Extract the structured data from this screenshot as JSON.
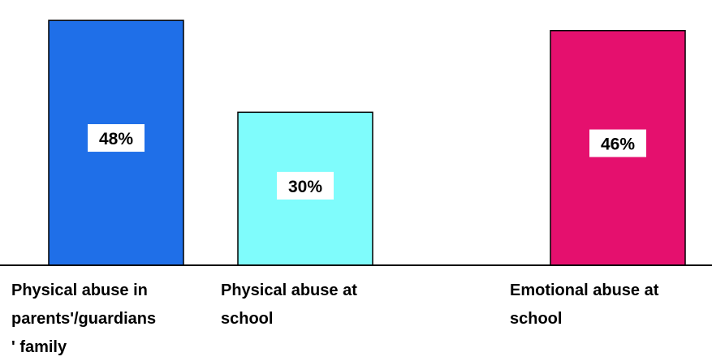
{
  "chart_data": {
    "type": "bar",
    "categories": [
      [
        "Physical abuse in",
        "parents'/guardians",
        "' family"
      ],
      [
        "Physical abuse at",
        "school"
      ],
      [
        "Emotional abuse at",
        "school"
      ]
    ],
    "values": [
      48,
      30,
      46
    ],
    "data_labels": [
      "48%",
      "30%",
      "46%"
    ],
    "colors": [
      "#1f6fe8",
      "#7ffcfc",
      "#e5106e"
    ],
    "ylim": [
      0,
      52
    ],
    "grid": false,
    "legend": "none"
  }
}
